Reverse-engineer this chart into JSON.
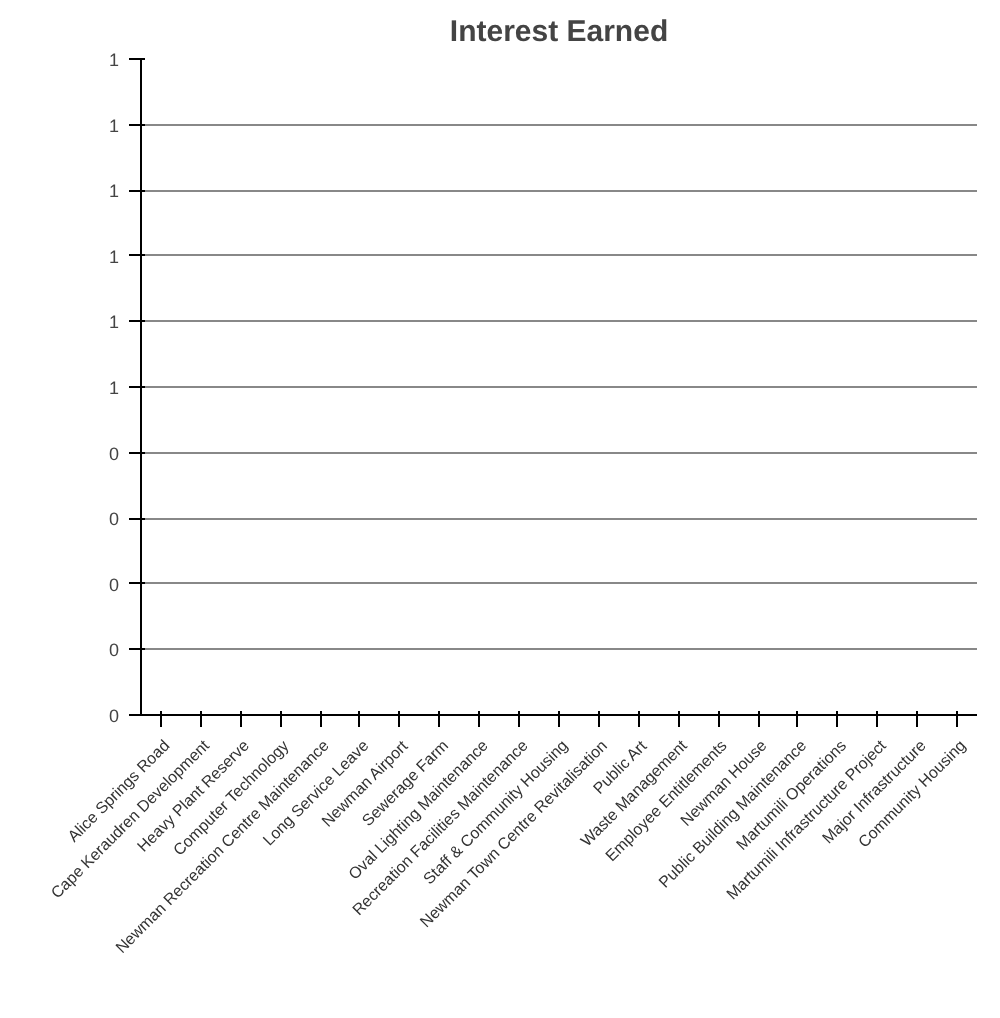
{
  "chart_data": {
    "type": "bar",
    "title": "Interest Earned",
    "categories": [
      "Alice Springs Road",
      "Cape Keraudren Development",
      "Heavy Plant Reserve",
      "Computer Technology",
      "Newman Recreation Centre Maintenance",
      "Long Service Leave",
      "Newman Airport",
      "Sewerage Farm",
      "Oval Lighting Maintenance",
      "Recreation Facilities Maintenance",
      "Staff & Community Housing",
      "Newman Town Centre Revitalisation",
      "Public Art",
      "Waste Management",
      "Employee Entitlements",
      "Newman House",
      "Public Building Maintenance",
      "Martumili Operations",
      "Martumili Infrastructure Project",
      "Major Infrastructure",
      "Community Housing"
    ],
    "values": [
      0,
      0,
      0,
      0,
      0,
      0,
      0,
      0,
      0,
      0,
      0,
      0,
      0,
      0,
      0,
      0,
      0,
      0,
      0,
      0,
      0
    ],
    "ylim": [
      0,
      1
    ],
    "yticks": [
      {
        "value": 0,
        "label": "0"
      },
      {
        "value": 0.1,
        "label": "0"
      },
      {
        "value": 0.2,
        "label": "0"
      },
      {
        "value": 0.3,
        "label": "0"
      },
      {
        "value": 0.4,
        "label": "0"
      },
      {
        "value": 0.5,
        "label": "1"
      },
      {
        "value": 0.6,
        "label": "1"
      },
      {
        "value": 0.7,
        "label": "1"
      },
      {
        "value": 0.8,
        "label": "1"
      },
      {
        "value": 0.9,
        "label": "1"
      },
      {
        "value": 1,
        "label": "1"
      }
    ],
    "grid": "y"
  }
}
